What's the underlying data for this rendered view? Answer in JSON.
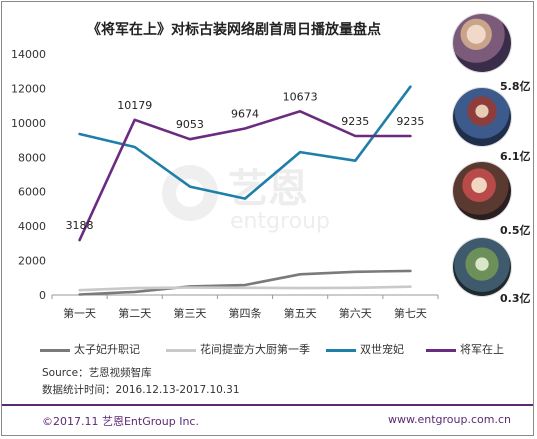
{
  "chart_data": {
    "type": "line",
    "title": "《将军在上》对标古装网络剧首周日播放量盘点",
    "categories": [
      "第一天",
      "第二天",
      "第三天",
      "第四条",
      "第五天",
      "第六天",
      "第七天"
    ],
    "ylim": [
      0,
      14000
    ],
    "yticks": [
      0,
      2000,
      4000,
      6000,
      8000,
      10000,
      12000,
      14000
    ],
    "grid": false,
    "legend_position": "bottom",
    "series": [
      {
        "name": "太子妃升职记",
        "color": "#7a7a7a",
        "values": [
          30,
          180,
          500,
          580,
          1200,
          1350,
          1400
        ]
      },
      {
        "name": "花间提壶方大厨第一季",
        "color": "#c9c9c9",
        "values": [
          280,
          400,
          430,
          420,
          400,
          420,
          480
        ]
      },
      {
        "name": "双世宠妃",
        "color": "#1e7fa8",
        "values": [
          9350,
          8600,
          6300,
          5600,
          8300,
          7800,
          12100
        ]
      },
      {
        "name": "将军在上",
        "color": "#6b2c80",
        "values": [
          3188,
          10179,
          9053,
          9674,
          10673,
          9235,
          9235
        ]
      }
    ],
    "data_labels": {
      "series": "将军在上",
      "labels": [
        "3188",
        "10179",
        "9053",
        "9674",
        "10673",
        "9235",
        "9235"
      ]
    },
    "totals": [
      {
        "label": "5.8亿",
        "color": "#1e7fa8"
      },
      {
        "label": "6.1亿",
        "color": "#6b2c80"
      },
      {
        "label": "0.5亿",
        "color": "#7a7a7a"
      },
      {
        "label": "0.3亿",
        "color": "#a0a0a0"
      }
    ]
  },
  "source_text": "Source：艺恩视频智库",
  "stats_time_text": "数据统计时间：2016.12.13-2017.10.31",
  "watermark": {
    "brand_cn": "艺恩",
    "brand_en": "entgroup"
  },
  "footer": {
    "copyright": "©2017.11 艺恩EntGroup Inc.",
    "website": "www.entgroup.com.cn"
  }
}
